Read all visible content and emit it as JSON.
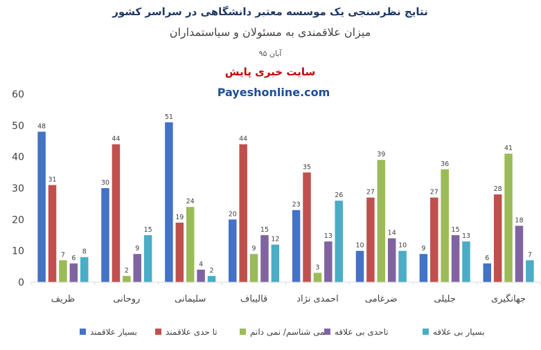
{
  "header": {
    "title": "نتایج نظرسنجی یک موسسه معتبر دانشگاهی در سراسر کشور",
    "subtitle": "میزان علاقمندی به مسئولان و سیاستمداران",
    "date": "آبان ۹۵",
    "site": "سایت خبری پایش",
    "url": "Payeshonline.com"
  },
  "colors": {
    "series": [
      "#4472c4",
      "#c0504d",
      "#9bbb59",
      "#8064a2",
      "#4bacc6"
    ],
    "title": "#1f3864",
    "site": "#c00000",
    "url": "#1f4e99"
  },
  "chart_data": {
    "type": "bar",
    "categories": [
      "ظریف",
      "روحانی",
      "سلیمانی",
      "قالیباف",
      "احمدی نژاد",
      "ضرغامی",
      "جلیلی",
      "جهانگیری"
    ],
    "series": [
      {
        "name": "بسیار علاقمند",
        "values": [
          48,
          30,
          51,
          20,
          23,
          10,
          9,
          6
        ]
      },
      {
        "name": "تا حدی علاقمند",
        "values": [
          31,
          44,
          19,
          44,
          35,
          27,
          27,
          28
        ]
      },
      {
        "name": "نمی شناسم/ نمی دانم",
        "values": [
          7,
          2,
          24,
          9,
          3,
          39,
          36,
          41
        ]
      },
      {
        "name": "تاحدی بی علاقه",
        "values": [
          6,
          9,
          4,
          15,
          13,
          14,
          15,
          18
        ]
      },
      {
        "name": "بسیار بی علاقه",
        "values": [
          8,
          15,
          2,
          12,
          26,
          10,
          13,
          7
        ]
      }
    ],
    "yticks": [
      0,
      10,
      20,
      30,
      40,
      50,
      60
    ],
    "ylim": [
      0,
      60
    ],
    "grid": false,
    "legend": "bottom"
  }
}
